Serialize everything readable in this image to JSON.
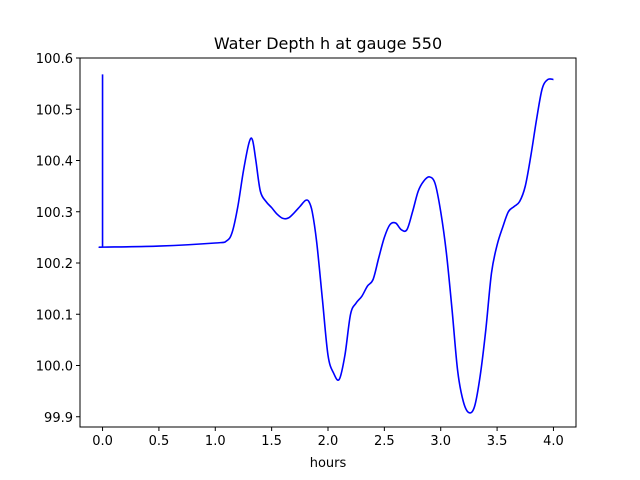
{
  "chart_data": {
    "type": "line",
    "title": "Water Depth h at gauge 550",
    "xlabel": "hours",
    "ylabel": "",
    "xlim": [
      -0.2,
      4.2
    ],
    "ylim": [
      99.88,
      100.6
    ],
    "xticks": [
      0.0,
      0.5,
      1.0,
      1.5,
      2.0,
      2.5,
      3.0,
      3.5,
      4.0
    ],
    "xtick_labels": [
      "0.0",
      "0.5",
      "1.0",
      "1.5",
      "2.0",
      "2.5",
      "3.0",
      "3.5",
      "4.0"
    ],
    "yticks": [
      99.9,
      100.0,
      100.1,
      100.2,
      100.3,
      100.4,
      100.5,
      100.6
    ],
    "ytick_labels": [
      "99.9",
      "100.0",
      "100.1",
      "100.2",
      "100.3",
      "100.4",
      "100.5",
      "100.6"
    ],
    "grid": false,
    "series": [
      {
        "color": "#0000ff",
        "x": [
          0.0,
          0.0,
          0.01,
          0.5,
          1.0,
          1.1,
          1.15,
          1.2,
          1.25,
          1.3,
          1.33,
          1.36,
          1.4,
          1.45,
          1.5,
          1.55,
          1.6,
          1.65,
          1.7,
          1.75,
          1.8,
          1.83,
          1.86,
          1.9,
          1.95,
          2.0,
          2.05,
          2.1,
          2.15,
          2.2,
          2.25,
          2.3,
          2.35,
          2.4,
          2.45,
          2.5,
          2.55,
          2.6,
          2.65,
          2.7,
          2.75,
          2.8,
          2.85,
          2.9,
          2.95,
          3.0,
          3.05,
          3.1,
          3.15,
          3.2,
          3.25,
          3.3,
          3.35,
          3.4,
          3.45,
          3.5,
          3.55,
          3.6,
          3.65,
          3.7,
          3.75,
          3.8,
          3.85,
          3.9,
          3.95,
          4.0
        ],
        "y": [
          100.568,
          100.231,
          100.231,
          100.233,
          100.239,
          100.243,
          100.26,
          100.31,
          100.38,
          100.435,
          100.44,
          100.4,
          100.34,
          100.32,
          100.308,
          100.295,
          100.287,
          100.288,
          100.298,
          100.31,
          100.322,
          100.32,
          100.3,
          100.24,
          100.13,
          100.02,
          99.985,
          99.973,
          100.02,
          100.1,
          100.122,
          100.135,
          100.155,
          100.168,
          100.21,
          100.25,
          100.275,
          100.278,
          100.265,
          100.265,
          100.3,
          100.34,
          100.36,
          100.368,
          100.355,
          100.3,
          100.22,
          100.11,
          99.99,
          99.93,
          99.908,
          99.92,
          99.98,
          100.07,
          100.18,
          100.235,
          100.27,
          100.3,
          100.31,
          100.32,
          100.35,
          100.41,
          100.48,
          100.54,
          100.558,
          100.558
        ]
      }
    ]
  }
}
